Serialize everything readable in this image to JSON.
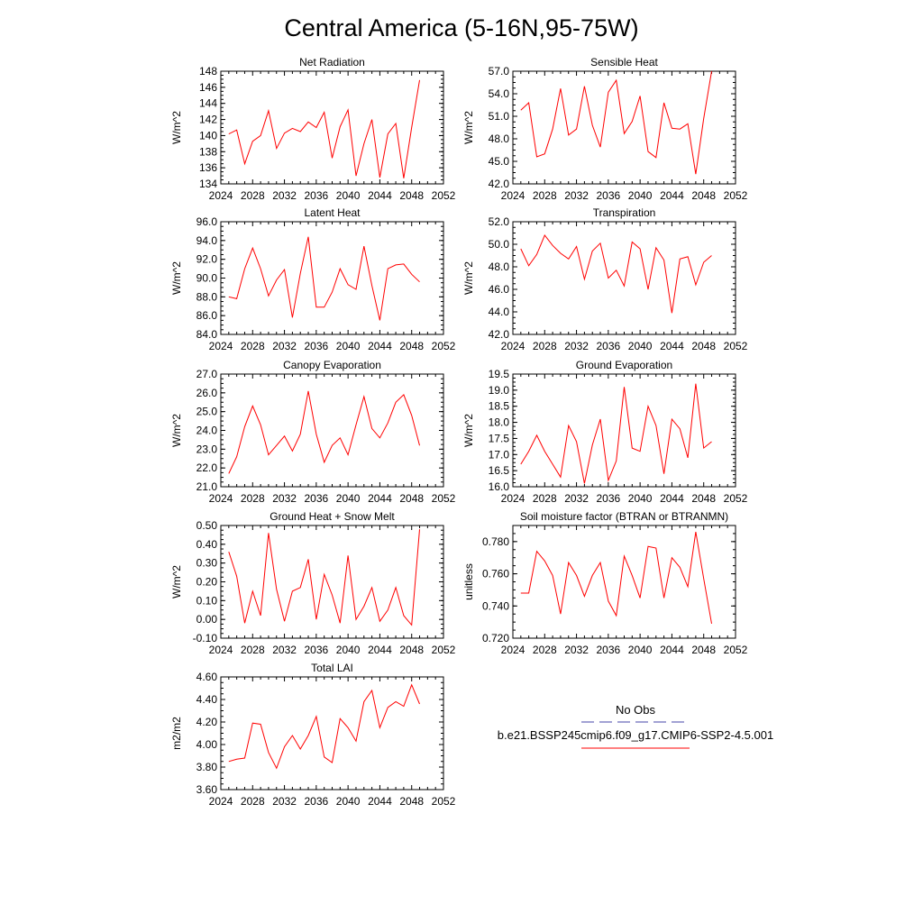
{
  "figure": {
    "title": "Central America (5-16N,95-75W)"
  },
  "legend": {
    "obs_label": "No Obs",
    "obs_color": "#4444aa",
    "model_label": "b.e21.BSSP245cmip6.f09_g17.CMIP6-SSP2-4.5.001",
    "model_color": "#ff0000"
  },
  "chart_data": [
    {
      "type": "line",
      "title": "Net Radiation",
      "xlabel": "",
      "ylabel": "W/m^2",
      "xlim": [
        2024,
        2052
      ],
      "ylim": [
        134,
        148
      ],
      "x_ticks": [
        "2024",
        "2028",
        "2032",
        "2036",
        "2040",
        "2044",
        "2048",
        "2052"
      ],
      "y_ticks": [
        "134",
        "136",
        "138",
        "140",
        "142",
        "144",
        "146",
        "148"
      ],
      "series": [
        {
          "x": [
            2025,
            2026,
            2027,
            2028,
            2029,
            2030,
            2031,
            2032,
            2033,
            2034,
            2035,
            2036,
            2037,
            2038,
            2039,
            2040,
            2041,
            2042,
            2043,
            2044,
            2045,
            2046,
            2047,
            2048,
            2049
          ],
          "values": [
            140.2,
            140.7,
            136.5,
            139.3,
            140.0,
            143.1,
            138.4,
            140.3,
            140.9,
            140.5,
            141.7,
            141.0,
            142.9,
            137.2,
            141.1,
            143.2,
            135.0,
            139.0,
            142.0,
            134.8,
            140.2,
            141.5,
            134.7,
            141.0,
            146.9
          ]
        }
      ]
    },
    {
      "type": "line",
      "title": "Sensible Heat",
      "xlabel": "",
      "ylabel": "W/m^2",
      "xlim": [
        2024,
        2052
      ],
      "ylim": [
        42,
        57
      ],
      "x_ticks": [
        "2024",
        "2028",
        "2032",
        "2036",
        "2040",
        "2044",
        "2048",
        "2052"
      ],
      "y_ticks": [
        "42.0",
        "45.0",
        "48.0",
        "51.0",
        "54.0",
        "57.0"
      ],
      "series": [
        {
          "x": [
            2025,
            2026,
            2027,
            2028,
            2029,
            2030,
            2031,
            2032,
            2033,
            2034,
            2035,
            2036,
            2037,
            2038,
            2039,
            2040,
            2041,
            2042,
            2043,
            2044,
            2045,
            2046,
            2047,
            2048,
            2049
          ],
          "values": [
            51.8,
            52.8,
            45.6,
            46.0,
            49.3,
            54.7,
            48.5,
            49.3,
            55.0,
            49.8,
            46.9,
            54.2,
            55.8,
            48.7,
            50.3,
            53.7,
            46.3,
            45.5,
            52.8,
            49.4,
            49.3,
            50.0,
            43.3,
            50.7,
            57.0
          ]
        }
      ]
    },
    {
      "type": "line",
      "title": "Latent Heat",
      "xlabel": "",
      "ylabel": "W/m^2",
      "xlim": [
        2024,
        2052
      ],
      "ylim": [
        84,
        96
      ],
      "x_ticks": [
        "2024",
        "2028",
        "2032",
        "2036",
        "2040",
        "2044",
        "2048",
        "2052"
      ],
      "y_ticks": [
        "84.0",
        "86.0",
        "88.0",
        "90.0",
        "92.0",
        "94.0",
        "96.0"
      ],
      "series": [
        {
          "x": [
            2025,
            2026,
            2027,
            2028,
            2029,
            2030,
            2031,
            2032,
            2033,
            2034,
            2035,
            2036,
            2037,
            2038,
            2039,
            2040,
            2041,
            2042,
            2043,
            2044,
            2045,
            2046,
            2047,
            2048,
            2049
          ],
          "values": [
            88.0,
            87.8,
            91.0,
            93.2,
            91.0,
            88.1,
            89.8,
            90.9,
            85.8,
            90.5,
            94.4,
            86.9,
            86.9,
            88.5,
            91.0,
            89.3,
            88.8,
            93.4,
            89.2,
            85.5,
            91.0,
            91.4,
            91.5,
            90.4,
            89.6
          ]
        }
      ]
    },
    {
      "type": "line",
      "title": "Transpiration",
      "xlabel": "",
      "ylabel": "W/m^2",
      "xlim": [
        2024,
        2052
      ],
      "ylim": [
        42,
        52
      ],
      "x_ticks": [
        "2024",
        "2028",
        "2032",
        "2036",
        "2040",
        "2044",
        "2048",
        "2052"
      ],
      "y_ticks": [
        "42.0",
        "44.0",
        "46.0",
        "48.0",
        "50.0",
        "52.0"
      ],
      "series": [
        {
          "x": [
            2025,
            2026,
            2027,
            2028,
            2029,
            2030,
            2031,
            2032,
            2033,
            2034,
            2035,
            2036,
            2037,
            2038,
            2039,
            2040,
            2041,
            2042,
            2043,
            2044,
            2045,
            2046,
            2047,
            2048,
            2049
          ],
          "values": [
            49.6,
            48.1,
            49.1,
            50.8,
            49.9,
            49.2,
            48.7,
            49.8,
            46.9,
            49.4,
            50.1,
            47.0,
            47.7,
            46.3,
            50.2,
            49.6,
            46.0,
            49.7,
            48.6,
            43.9,
            48.7,
            48.9,
            46.4,
            48.4,
            49.0
          ]
        }
      ]
    },
    {
      "type": "line",
      "title": "Canopy Evaporation",
      "xlabel": "",
      "ylabel": "W/m^2",
      "xlim": [
        2024,
        2052
      ],
      "ylim": [
        21,
        27
      ],
      "x_ticks": [
        "2024",
        "2028",
        "2032",
        "2036",
        "2040",
        "2044",
        "2048",
        "2052"
      ],
      "y_ticks": [
        "21.0",
        "22.0",
        "23.0",
        "24.0",
        "25.0",
        "26.0",
        "27.0"
      ],
      "series": [
        {
          "x": [
            2025,
            2026,
            2027,
            2028,
            2029,
            2030,
            2031,
            2032,
            2033,
            2034,
            2035,
            2036,
            2037,
            2038,
            2039,
            2040,
            2041,
            2042,
            2043,
            2044,
            2045,
            2046,
            2047,
            2048,
            2049
          ],
          "values": [
            21.7,
            22.6,
            24.2,
            25.3,
            24.3,
            22.7,
            23.2,
            23.7,
            22.9,
            23.8,
            26.1,
            23.8,
            22.3,
            23.2,
            23.6,
            22.7,
            24.3,
            25.8,
            24.1,
            23.6,
            24.4,
            25.5,
            25.9,
            24.8,
            23.2
          ]
        }
      ]
    },
    {
      "type": "line",
      "title": "Ground Evaporation",
      "xlabel": "",
      "ylabel": "W/m^2",
      "xlim": [
        2024,
        2052
      ],
      "ylim": [
        16,
        19.5
      ],
      "x_ticks": [
        "2024",
        "2028",
        "2032",
        "2036",
        "2040",
        "2044",
        "2048",
        "2052"
      ],
      "y_ticks": [
        "16.0",
        "16.5",
        "17.0",
        "17.5",
        "18.0",
        "18.5",
        "19.0",
        "19.5"
      ],
      "series": [
        {
          "x": [
            2025,
            2026,
            2027,
            2028,
            2029,
            2030,
            2031,
            2032,
            2033,
            2034,
            2035,
            2036,
            2037,
            2038,
            2039,
            2040,
            2041,
            2042,
            2043,
            2044,
            2045,
            2046,
            2047,
            2048,
            2049
          ],
          "values": [
            16.7,
            17.1,
            17.6,
            17.1,
            16.7,
            16.3,
            17.9,
            17.4,
            16.1,
            17.3,
            18.1,
            16.2,
            16.8,
            19.1,
            17.2,
            17.1,
            18.5,
            17.9,
            16.4,
            18.1,
            17.8,
            16.9,
            19.2,
            17.2,
            17.4
          ]
        }
      ]
    },
    {
      "type": "line",
      "title": "Ground Heat + Snow Melt",
      "xlabel": "",
      "ylabel": "W/m^2",
      "xlim": [
        2024,
        2052
      ],
      "ylim": [
        -0.1,
        0.5
      ],
      "x_ticks": [
        "2024",
        "2028",
        "2032",
        "2036",
        "2040",
        "2044",
        "2048",
        "2052"
      ],
      "y_ticks": [
        "-0.10",
        "0.00",
        "0.10",
        "0.20",
        "0.30",
        "0.40",
        "0.50"
      ],
      "series": [
        {
          "x": [
            2025,
            2026,
            2027,
            2028,
            2029,
            2030,
            2031,
            2032,
            2033,
            2034,
            2035,
            2036,
            2037,
            2038,
            2039,
            2040,
            2041,
            2042,
            2043,
            2044,
            2045,
            2046,
            2047,
            2048,
            2049
          ],
          "values": [
            0.36,
            0.23,
            -0.02,
            0.15,
            0.02,
            0.46,
            0.16,
            -0.01,
            0.15,
            0.17,
            0.32,
            0.0,
            0.24,
            0.13,
            -0.02,
            0.34,
            0.0,
            0.07,
            0.17,
            -0.01,
            0.05,
            0.17,
            0.02,
            -0.03,
            0.48
          ]
        }
      ]
    },
    {
      "type": "line",
      "title": "Soil moisture factor (BTRAN or BTRANMN)",
      "xlabel": "",
      "ylabel": "unitless",
      "xlim": [
        2024,
        2052
      ],
      "ylim": [
        0.72,
        0.79
      ],
      "x_ticks": [
        "2024",
        "2028",
        "2032",
        "2036",
        "2040",
        "2044",
        "2048",
        "2052"
      ],
      "y_ticks": [
        "0.720",
        "0.740",
        "0.760",
        "0.780"
      ],
      "series": [
        {
          "x": [
            2025,
            2026,
            2027,
            2028,
            2029,
            2030,
            2031,
            2032,
            2033,
            2034,
            2035,
            2036,
            2037,
            2038,
            2039,
            2040,
            2041,
            2042,
            2043,
            2044,
            2045,
            2046,
            2047,
            2048,
            2049
          ],
          "values": [
            0.748,
            0.748,
            0.774,
            0.768,
            0.759,
            0.735,
            0.767,
            0.759,
            0.746,
            0.759,
            0.767,
            0.743,
            0.734,
            0.771,
            0.759,
            0.745,
            0.777,
            0.776,
            0.745,
            0.77,
            0.764,
            0.752,
            0.786,
            0.757,
            0.729
          ]
        }
      ]
    },
    {
      "type": "line",
      "title": "Total LAI",
      "xlabel": "",
      "ylabel": "m2/m2",
      "xlim": [
        2024,
        2052
      ],
      "ylim": [
        3.6,
        4.6
      ],
      "x_ticks": [
        "2024",
        "2028",
        "2032",
        "2036",
        "2040",
        "2044",
        "2048",
        "2052"
      ],
      "y_ticks": [
        "3.60",
        "3.80",
        "4.00",
        "4.20",
        "4.40",
        "4.60"
      ],
      "series": [
        {
          "x": [
            2025,
            2026,
            2027,
            2028,
            2029,
            2030,
            2031,
            2032,
            2033,
            2034,
            2035,
            2036,
            2037,
            2038,
            2039,
            2040,
            2041,
            2042,
            2043,
            2044,
            2045,
            2046,
            2047,
            2048,
            2049
          ],
          "values": [
            3.85,
            3.87,
            3.88,
            4.19,
            4.18,
            3.93,
            3.79,
            3.98,
            4.08,
            3.96,
            4.08,
            4.25,
            3.89,
            3.84,
            4.23,
            4.15,
            4.03,
            4.38,
            4.48,
            4.15,
            4.33,
            4.38,
            4.34,
            4.53,
            4.36
          ]
        }
      ]
    }
  ]
}
